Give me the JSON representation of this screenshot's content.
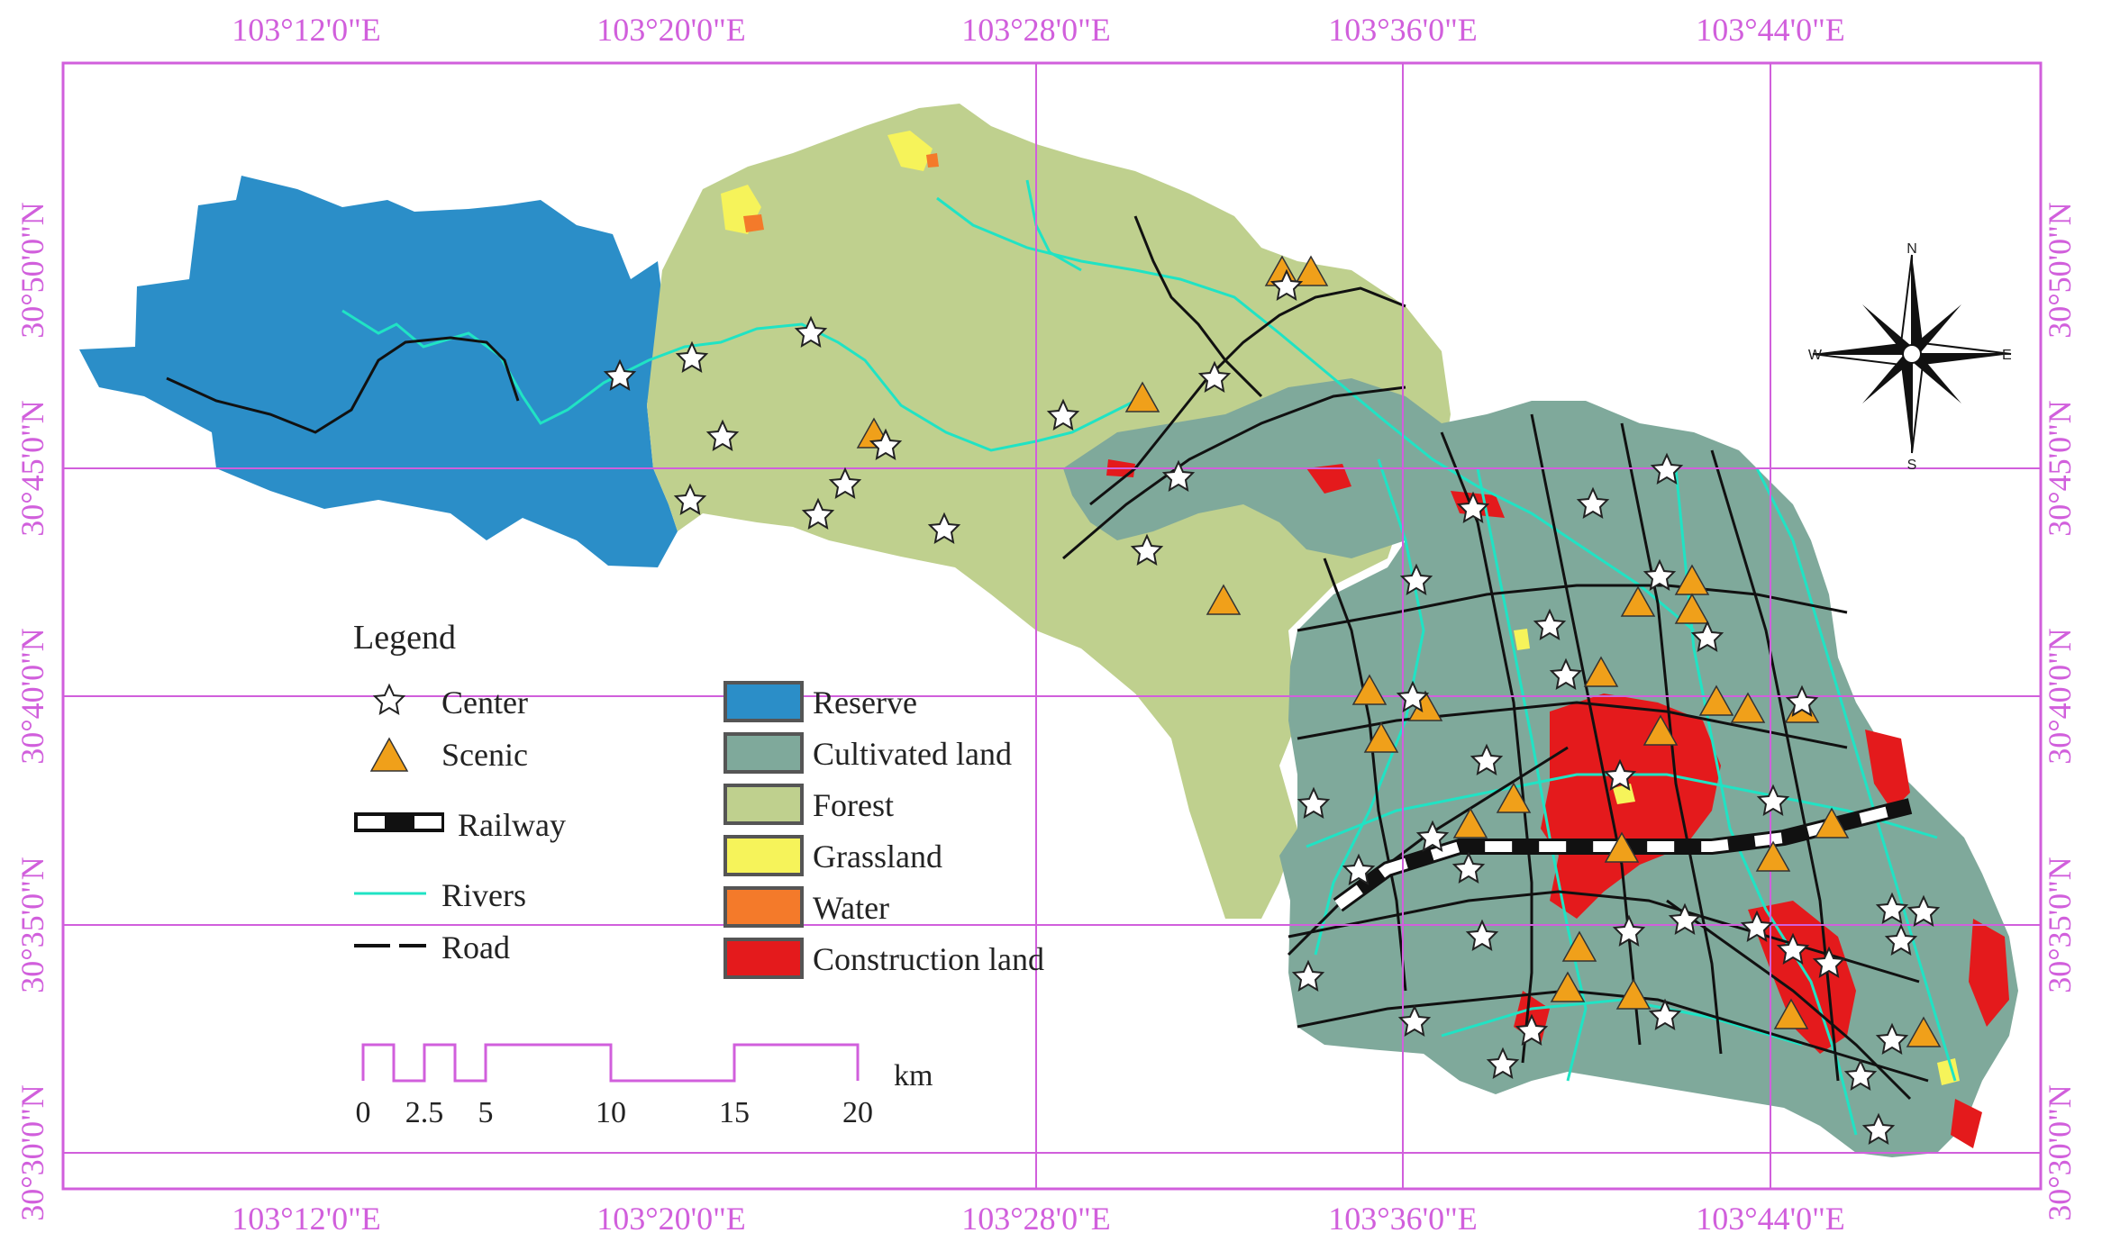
{
  "map": {
    "lon_labels": [
      "103°12'0\"E",
      "103°20'0\"E",
      "103°28'0\"E",
      "103°36'0\"E",
      "103°44'0\"E"
    ],
    "lat_labels": [
      "30°50'0\"N",
      "30°45'0\"N",
      "30°40'0\"N",
      "30°35'0\"N",
      "30°30'0\"N"
    ],
    "colors": {
      "reserve": "#2b8ec8",
      "cultivated": "#7fa99b",
      "forest": "#bfd08e",
      "grassland": "#f6f35a",
      "water": "#f47a2a",
      "construction": "#e41a1c",
      "river": "#20e3c4",
      "road": "#111111",
      "grid": "#d15fdc",
      "scenic": "#f0a01a"
    }
  },
  "legend": {
    "title": "Legend",
    "point_items": [
      {
        "label": "Center",
        "icon": "star-icon"
      },
      {
        "label": "Scenic",
        "icon": "triangle-icon"
      }
    ],
    "line_items": [
      {
        "label": "Railway",
        "icon": "railway-line-icon"
      },
      {
        "label": "Rivers",
        "icon": "river-line-icon"
      },
      {
        "label": "Road",
        "icon": "road-line-icon"
      }
    ],
    "landuse_items": [
      {
        "label": "Reserve",
        "color": "#2b8ec8"
      },
      {
        "label": "Cultivated land",
        "color": "#7fa99b"
      },
      {
        "label": "Forest",
        "color": "#bfd08e"
      },
      {
        "label": "Grassland",
        "color": "#f6f35a"
      },
      {
        "label": "Water",
        "color": "#f47a2a"
      },
      {
        "label": "Construction land",
        "color": "#e41a1c"
      }
    ]
  },
  "scale_bar": {
    "ticks": [
      "0",
      "2.5",
      "5",
      "10",
      "15",
      "20"
    ],
    "unit": "km"
  },
  "compass": {
    "n": "N",
    "s": "S",
    "e": "E",
    "w": "W"
  }
}
